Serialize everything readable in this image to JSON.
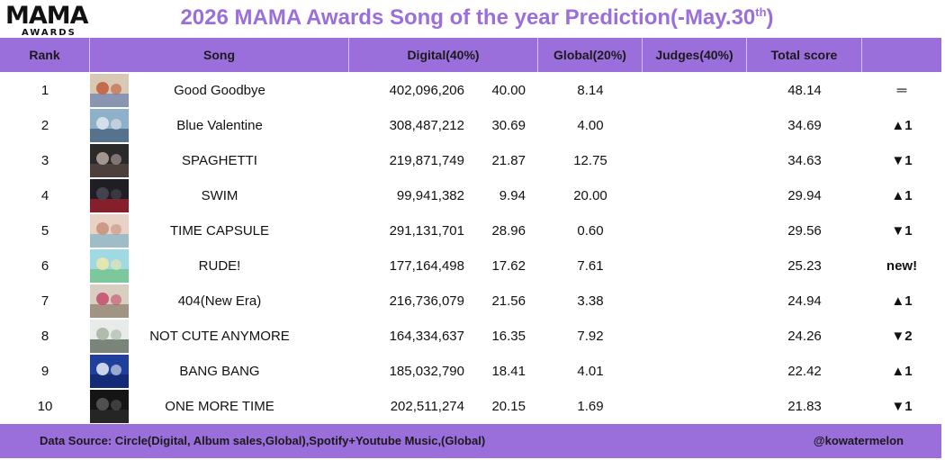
{
  "logo": {
    "top": "MAMA",
    "sub": "AWARDS"
  },
  "title": {
    "main": "2026 MAMA Awards Song of the year Prediction(-May.30",
    "sup": "th",
    "close": ")"
  },
  "headers": {
    "rank": "Rank",
    "song": "Song",
    "digital": "Digital(40%)",
    "global": "Global(20%)",
    "judges": "Judges(40%)",
    "total": "Total score",
    "change": ""
  },
  "rows": [
    {
      "rank": "1",
      "song": "Good Goodbye",
      "digital": "402,096,206",
      "digital_score": "40.00",
      "global": "8.14",
      "total": "48.14",
      "change": "═",
      "dir": "same",
      "art": [
        "#d8c9b5",
        "#c05a3a",
        "#6a7fb0"
      ]
    },
    {
      "rank": "2",
      "song": "Blue Valentine",
      "digital": "308,487,212",
      "digital_score": "30.69",
      "global": "4.00",
      "total": "34.69",
      "change": "▲1",
      "dir": "up",
      "art": [
        "#8fb0c9",
        "#dfe7ee",
        "#3d5a75"
      ]
    },
    {
      "rank": "3",
      "song": "SPAGHETTI",
      "digital": "219,871,749",
      "digital_score": "21.87",
      "global": "12.75",
      "total": "34.63",
      "change": "▼1",
      "dir": "down",
      "art": [
        "#2a2a2a",
        "#b9a9a0",
        "#5c4a44"
      ]
    },
    {
      "rank": "4",
      "song": "SWIM",
      "digital": "99,941,382",
      "digital_score": "9.94",
      "global": "20.00",
      "total": "29.94",
      "change": "▲1",
      "dir": "up",
      "art": [
        "#1e1e24",
        "#4a4a55",
        "#b02030"
      ]
    },
    {
      "rank": "5",
      "song": "TIME CAPSULE",
      "digital": "291,131,701",
      "digital_score": "28.96",
      "global": "0.60",
      "total": "29.56",
      "change": "▼1",
      "dir": "down",
      "art": [
        "#e7d2c5",
        "#c88f7a",
        "#7fb3c8"
      ]
    },
    {
      "rank": "6",
      "song": "RUDE!",
      "digital": "177,164,498",
      "digital_score": "17.62",
      "global": "7.61",
      "total": "25.23",
      "change": "new!",
      "dir": "new",
      "art": [
        "#9fd9e3",
        "#f0e6a8",
        "#6fbf7d"
      ]
    },
    {
      "rank": "7",
      "song": "404(New Era)",
      "digital": "216,736,079",
      "digital_score": "21.56",
      "global": "3.38",
      "total": "24.94",
      "change": "▲1",
      "dir": "up",
      "art": [
        "#d9cfc0",
        "#c44a6a",
        "#8a7b6a"
      ]
    },
    {
      "rank": "8",
      "song": "NOT CUTE ANYMORE",
      "digital": "164,334,637",
      "digital_score": "16.35",
      "global": "7.92",
      "total": "24.26",
      "change": "▼2",
      "dir": "down",
      "art": [
        "#e8ece8",
        "#a5b3a0",
        "#4a5a48"
      ]
    },
    {
      "rank": "9",
      "song": "BANG BANG",
      "digital": "185,032,790",
      "digital_score": "18.41",
      "global": "4.01",
      "total": "22.42",
      "change": "▲1",
      "dir": "up",
      "art": [
        "#1f3f9a",
        "#e8eef7",
        "#0f2568"
      ]
    },
    {
      "rank": "10",
      "song": "ONE MORE TIME",
      "digital": "202,511,274",
      "digital_score": "20.15",
      "global": "1.69",
      "total": "21.83",
      "change": "▼1",
      "dir": "down",
      "art": [
        "#151515",
        "#5a5a5a",
        "#2c2c2c"
      ]
    }
  ],
  "footer": {
    "source": "Data Source: Circle(Digital, Album sales,Global),Spotify+Youtube Music,(Global)",
    "credit": "@kowatermelon"
  },
  "colors": {
    "accent": "#9b6fdb",
    "up": "#d42222",
    "down": "#1a6fc0"
  }
}
